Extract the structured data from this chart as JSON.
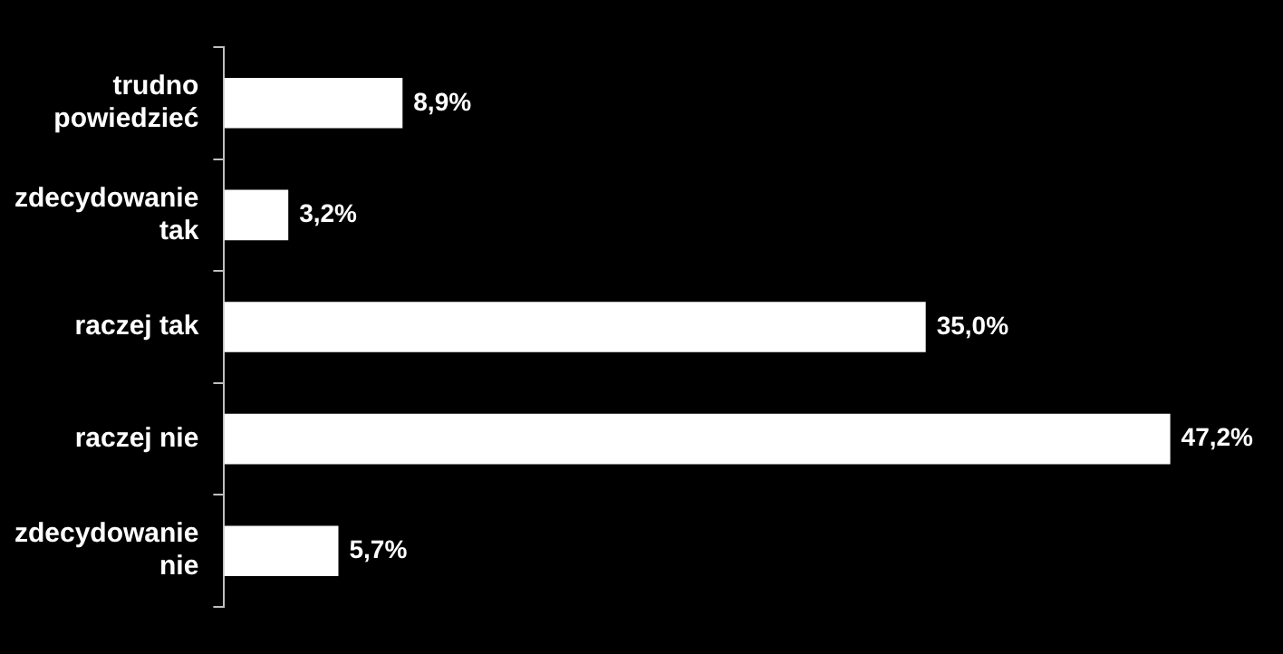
{
  "chart_data": {
    "type": "bar",
    "orientation": "horizontal",
    "categories": [
      "trudno powiedzieć",
      "zdecydowanie tak",
      "raczej tak",
      "raczej nie",
      "zdecydowanie nie"
    ],
    "values": [
      8.9,
      3.2,
      35.0,
      47.2,
      5.7
    ],
    "value_labels": [
      "8,9%",
      "3,2%",
      "35,0%",
      "47,2%",
      "5,7%"
    ],
    "color": "#ffffff",
    "legend": false,
    "grid": false
  }
}
